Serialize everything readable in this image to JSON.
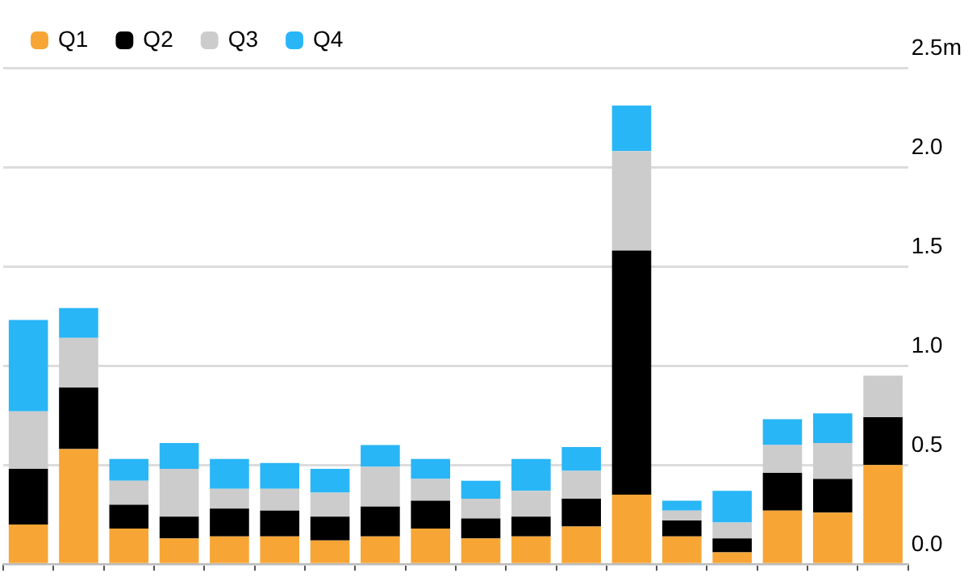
{
  "chart_data": {
    "type": "bar",
    "stacked": true,
    "categories": [
      null,
      null,
      null,
      null,
      null,
      null,
      null,
      null,
      null,
      null,
      null,
      null,
      null,
      null,
      null,
      null,
      null,
      null
    ],
    "series": [
      {
        "name": "Q1",
        "color": "#f7a535",
        "values": [
          0.2,
          0.58,
          0.18,
          0.13,
          0.14,
          0.14,
          0.12,
          0.14,
          0.18,
          0.13,
          0.14,
          0.19,
          0.35,
          0.14,
          0.06,
          0.27,
          0.26,
          0.5
        ]
      },
      {
        "name": "Q2",
        "color": "#000000",
        "values": [
          0.28,
          0.31,
          0.12,
          0.11,
          0.14,
          0.13,
          0.12,
          0.15,
          0.14,
          0.1,
          0.1,
          0.14,
          1.23,
          0.08,
          0.07,
          0.19,
          0.17,
          0.24
        ]
      },
      {
        "name": "Q3",
        "color": "#cccccc",
        "values": [
          0.29,
          0.25,
          0.12,
          0.24,
          0.1,
          0.11,
          0.12,
          0.2,
          0.11,
          0.1,
          0.13,
          0.14,
          0.5,
          0.05,
          0.08,
          0.14,
          0.18,
          0.21
        ]
      },
      {
        "name": "Q4",
        "color": "#29b6f6",
        "values": [
          0.46,
          0.15,
          0.11,
          0.13,
          0.15,
          0.13,
          0.12,
          0.11,
          0.1,
          0.09,
          0.16,
          0.12,
          0.23,
          0.05,
          0.16,
          0.13,
          0.15,
          null
        ]
      }
    ],
    "ylim": [
      0,
      2.5
    ],
    "yticks": [
      {
        "value": 0,
        "label": "0.0"
      },
      {
        "value": 0.5,
        "label": "0.5"
      },
      {
        "value": 1,
        "label": "1.0"
      },
      {
        "value": 1.5,
        "label": "1.5"
      },
      {
        "value": 2,
        "label": "2.0"
      },
      {
        "value": 2.5,
        "label": "2.5m"
      }
    ],
    "grid": "y",
    "legend": "top left",
    "tick_labels": "y"
  }
}
